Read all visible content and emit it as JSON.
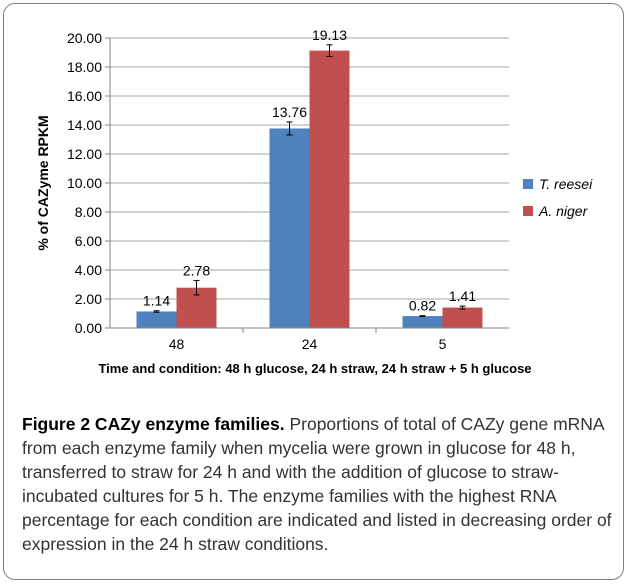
{
  "chart_data": {
    "type": "bar",
    "categories": [
      "48",
      "24",
      "5"
    ],
    "series": [
      {
        "name": "T. reesei",
        "color": "#4f81bd",
        "values": [
          1.14,
          13.76,
          0.82
        ],
        "errors": [
          0.05,
          0.45,
          0.03
        ],
        "labels": [
          "1.14",
          "13.76",
          "0.82"
        ]
      },
      {
        "name": "A. niger",
        "color": "#c0504d",
        "values": [
          2.78,
          19.13,
          1.41
        ],
        "errors": [
          0.5,
          0.4,
          0.1
        ],
        "labels": [
          "2.78",
          "19.13",
          "1.41"
        ]
      }
    ],
    "title": "",
    "xlabel": "Time and condition: 48 h glucose, 24 h straw, 24 h straw + 5 h glucose",
    "ylabel": "% of CAZyme RPKM",
    "ylim": [
      0,
      20
    ],
    "yticks": [
      "0.00",
      "2.00",
      "4.00",
      "6.00",
      "8.00",
      "10.00",
      "12.00",
      "14.00",
      "16.00",
      "18.00",
      "20.00"
    ],
    "grid": true,
    "legend_position": "right"
  },
  "caption": {
    "label": "Figure 2 CAZy enzyme families.",
    "text": " Proportions of total of CAZy gene mRNA from each enzyme family when mycelia were grown in glucose for 48 h, transferred to straw for 24 h and with the addition of glucose to straw-incubated cultures for 5 h. The enzyme families with the highest RNA percentage for each condition are indicated and listed in decreasing order of expression in the 24 h straw conditions."
  }
}
